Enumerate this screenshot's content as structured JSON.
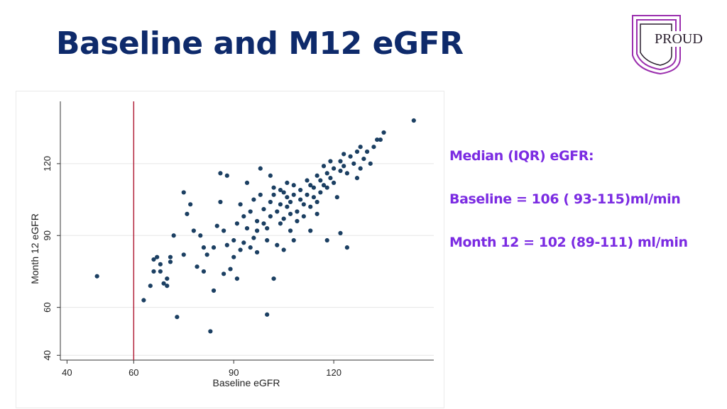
{
  "slide": {
    "title": "Baseline and M12 eGFR"
  },
  "logo": {
    "text": "PROUD",
    "color": "#9b2fae"
  },
  "info": {
    "heading": "Median (IQR) eGFR:",
    "baseline": "Baseline = 106 ( 93-115)ml/min",
    "month12": "Month 12 = 102 (89-111) ml/min",
    "color": "#7b2be2"
  },
  "chart_data": {
    "type": "scatter",
    "xlabel": "Baseline eGFR",
    "ylabel": "Month 12 eGFR",
    "xlim": [
      38,
      150
    ],
    "ylim": [
      38,
      146
    ],
    "xticks": [
      40,
      60,
      90,
      120
    ],
    "yticks": [
      40,
      60,
      90,
      120
    ],
    "grid": true,
    "reference_line": {
      "axis": "x",
      "value": 60,
      "color": "#b2243c"
    },
    "marker_color": "#1b3f62",
    "points": [
      [
        49,
        73
      ],
      [
        63,
        63
      ],
      [
        65,
        69
      ],
      [
        66,
        80
      ],
      [
        66,
        75
      ],
      [
        67,
        81
      ],
      [
        68,
        75
      ],
      [
        68,
        78
      ],
      [
        69,
        70
      ],
      [
        70,
        69
      ],
      [
        70,
        72
      ],
      [
        71,
        81
      ],
      [
        71,
        79
      ],
      [
        72,
        90
      ],
      [
        73,
        56
      ],
      [
        75,
        82
      ],
      [
        75,
        108
      ],
      [
        76,
        99
      ],
      [
        77,
        103
      ],
      [
        78,
        92
      ],
      [
        79,
        77
      ],
      [
        80,
        90
      ],
      [
        81,
        75
      ],
      [
        81,
        85
      ],
      [
        82,
        82
      ],
      [
        83,
        50
      ],
      [
        84,
        67
      ],
      [
        84,
        85
      ],
      [
        85,
        94
      ],
      [
        86,
        116
      ],
      [
        86,
        104
      ],
      [
        87,
        92
      ],
      [
        87,
        74
      ],
      [
        88,
        115
      ],
      [
        88,
        86
      ],
      [
        89,
        76
      ],
      [
        90,
        88
      ],
      [
        90,
        81
      ],
      [
        91,
        95
      ],
      [
        91,
        72
      ],
      [
        92,
        103
      ],
      [
        92,
        84
      ],
      [
        93,
        98
      ],
      [
        93,
        87
      ],
      [
        94,
        93
      ],
      [
        94,
        112
      ],
      [
        95,
        85
      ],
      [
        95,
        100
      ],
      [
        96,
        105
      ],
      [
        96,
        89
      ],
      [
        97,
        96
      ],
      [
        97,
        83
      ],
      [
        97,
        92
      ],
      [
        98,
        107
      ],
      [
        98,
        118
      ],
      [
        99,
        101
      ],
      [
        99,
        95
      ],
      [
        100,
        57
      ],
      [
        100,
        93
      ],
      [
        100,
        88
      ],
      [
        101,
        104
      ],
      [
        101,
        98
      ],
      [
        101,
        115
      ],
      [
        102,
        107
      ],
      [
        102,
        72
      ],
      [
        102,
        110
      ],
      [
        103,
        100
      ],
      [
        103,
        86
      ],
      [
        104,
        103
      ],
      [
        104,
        95
      ],
      [
        104,
        109
      ],
      [
        105,
        108
      ],
      [
        105,
        97
      ],
      [
        105,
        84
      ],
      [
        106,
        106
      ],
      [
        106,
        102
      ],
      [
        106,
        112
      ],
      [
        107,
        104
      ],
      [
        107,
        92
      ],
      [
        107,
        99
      ],
      [
        108,
        111
      ],
      [
        108,
        107
      ],
      [
        108,
        88
      ],
      [
        109,
        100
      ],
      [
        109,
        96
      ],
      [
        110,
        109
      ],
      [
        110,
        105
      ],
      [
        111,
        103
      ],
      [
        111,
        98
      ],
      [
        112,
        113
      ],
      [
        112,
        107
      ],
      [
        113,
        102
      ],
      [
        113,
        111
      ],
      [
        113,
        92
      ],
      [
        114,
        110
      ],
      [
        114,
        106
      ],
      [
        115,
        115
      ],
      [
        115,
        99
      ],
      [
        115,
        104
      ],
      [
        116,
        113
      ],
      [
        116,
        108
      ],
      [
        117,
        119
      ],
      [
        117,
        111
      ],
      [
        118,
        116
      ],
      [
        118,
        110
      ],
      [
        118,
        88
      ],
      [
        119,
        121
      ],
      [
        119,
        114
      ],
      [
        120,
        118
      ],
      [
        120,
        112
      ],
      [
        121,
        106
      ],
      [
        122,
        121
      ],
      [
        122,
        117
      ],
      [
        122,
        91
      ],
      [
        123,
        124
      ],
      [
        123,
        119
      ],
      [
        124,
        116
      ],
      [
        124,
        85
      ],
      [
        125,
        123
      ],
      [
        126,
        120
      ],
      [
        127,
        125
      ],
      [
        127,
        114
      ],
      [
        128,
        127
      ],
      [
        128,
        118
      ],
      [
        129,
        122
      ],
      [
        130,
        125
      ],
      [
        131,
        120
      ],
      [
        132,
        127
      ],
      [
        133,
        130
      ],
      [
        134,
        130
      ],
      [
        135,
        133
      ],
      [
        144,
        138
      ]
    ]
  }
}
